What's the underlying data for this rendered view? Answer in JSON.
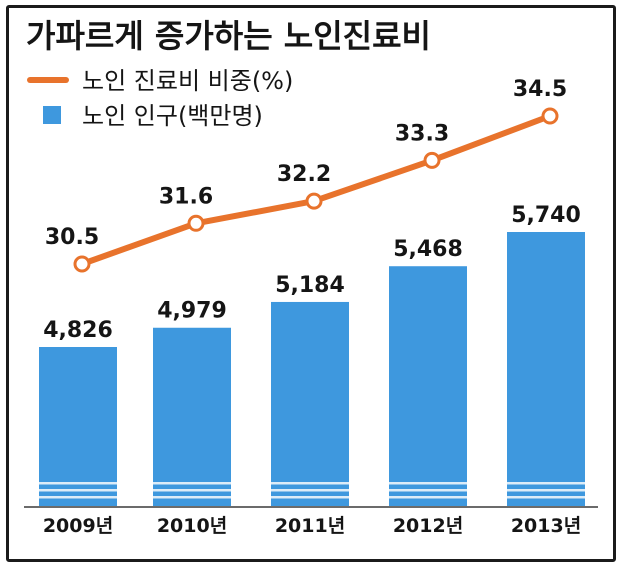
{
  "colors": {
    "bar": "#3e98de",
    "bar_stripe": "#dcecf8",
    "line": "#e8732c",
    "marker_fill": "#ffffff",
    "text": "#151515",
    "frame": "#1b1b1b"
  },
  "chart_data": {
    "type": "bar",
    "title": "가파르게 증가하는 노인진료비",
    "categories": [
      "2009년",
      "2010년",
      "2011년",
      "2012년",
      "2013년"
    ],
    "series": [
      {
        "name": "노인 인구(백만명)",
        "type": "bar",
        "values": [
          4826,
          4979,
          5184,
          5468,
          5740
        ],
        "labels": [
          "4,826",
          "4,979",
          "5,184",
          "5,468",
          "5,740"
        ]
      },
      {
        "name": "노인 진료비 비중(%)",
        "type": "line",
        "values": [
          30.5,
          31.6,
          32.2,
          33.3,
          34.5
        ],
        "labels": [
          "30.5",
          "31.6",
          "32.2",
          "33.3",
          "34.5"
        ]
      }
    ],
    "legend": "top-left",
    "grid": false,
    "axis_break": true
  }
}
